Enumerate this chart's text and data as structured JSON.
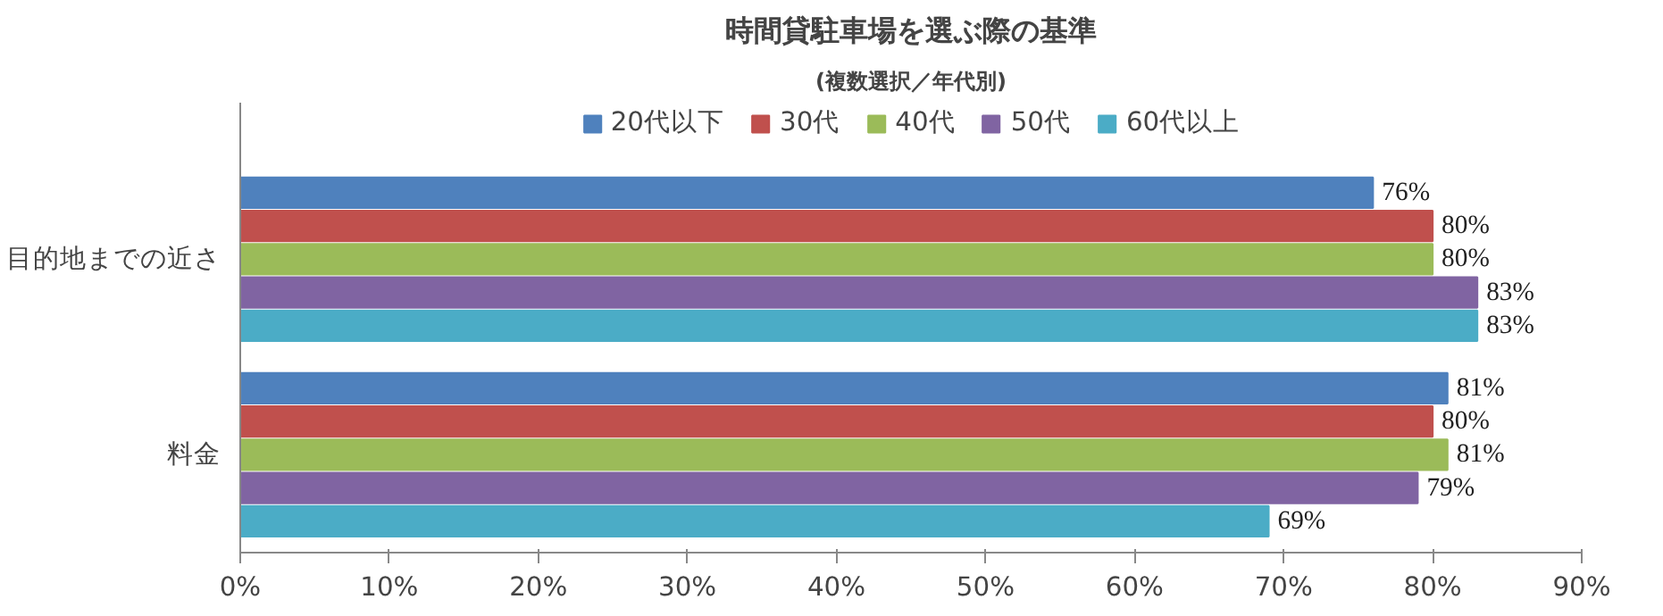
{
  "chart_data": {
    "type": "bar",
    "orientation": "horizontal",
    "title": "時間貸駐車場を選ぶ際の基準",
    "subtitle": "(複数選択／年代別)",
    "categories": [
      "目的地までの近さ",
      "料金"
    ],
    "series": [
      {
        "name": "20代以下",
        "color": "#4f81bd",
        "values": [
          76,
          81
        ],
        "value_labels": [
          "76%",
          "81%"
        ]
      },
      {
        "name": "30代",
        "color": "#c0504d",
        "values": [
          80,
          80
        ],
        "value_labels": [
          "80%",
          "80%"
        ]
      },
      {
        "name": "40代",
        "color": "#9bbb59",
        "values": [
          80,
          81
        ],
        "value_labels": [
          "80%",
          "81%"
        ]
      },
      {
        "name": "50代",
        "color": "#8064a2",
        "values": [
          83,
          79
        ],
        "value_labels": [
          "83%",
          "79%"
        ]
      },
      {
        "name": "60代以上",
        "color": "#4bacc6",
        "values": [
          83,
          69
        ],
        "value_labels": [
          "83%",
          "69%"
        ]
      }
    ],
    "xlim": [
      0,
      90
    ],
    "xticks": [
      {
        "value": 0,
        "label": "0%"
      },
      {
        "value": 10,
        "label": "10%"
      },
      {
        "value": 20,
        "label": "20%"
      },
      {
        "value": 30,
        "label": "30%"
      },
      {
        "value": 40,
        "label": "40%"
      },
      {
        "value": 50,
        "label": "50%"
      },
      {
        "value": 60,
        "label": "60%"
      },
      {
        "value": 70,
        "label": "70%"
      },
      {
        "value": 80,
        "label": "80%"
      },
      {
        "value": 90,
        "label": "90%"
      }
    ],
    "legend": "top",
    "grid": false
  }
}
